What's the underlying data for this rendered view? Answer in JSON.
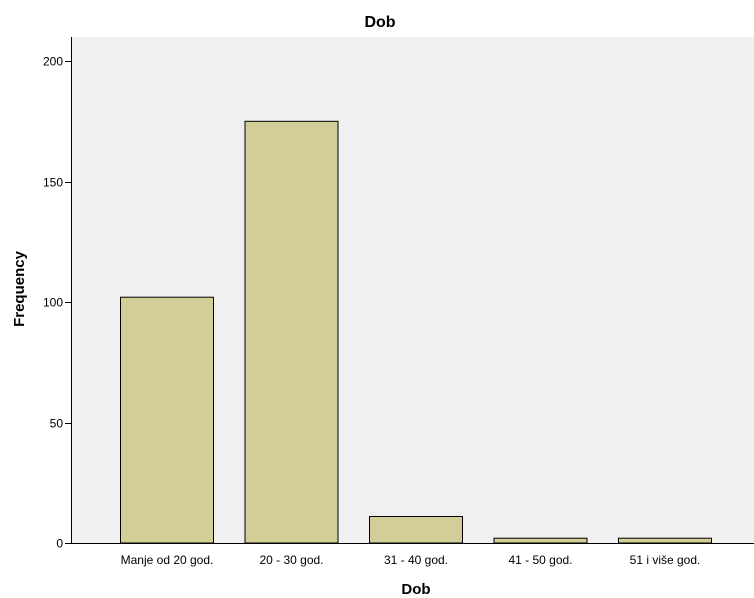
{
  "chart_data": {
    "type": "bar",
    "title": "Dob",
    "xlabel": "Dob",
    "ylabel": "Frequency",
    "categories": [
      "Manje od 20 god.",
      "20 - 30 god.",
      "31 - 40 god.",
      "41 - 50 god.",
      "51 i više god."
    ],
    "values": [
      102,
      175,
      11,
      2,
      2
    ],
    "ylim": [
      0,
      210
    ],
    "yticks": [
      0,
      50,
      100,
      150,
      200
    ],
    "grid": false,
    "legend": "none",
    "colors": {
      "plot_background": "#f0f0f0",
      "bar_fill": "#d3ce97",
      "bar_stroke": "#000000",
      "axis": "#000000"
    }
  }
}
